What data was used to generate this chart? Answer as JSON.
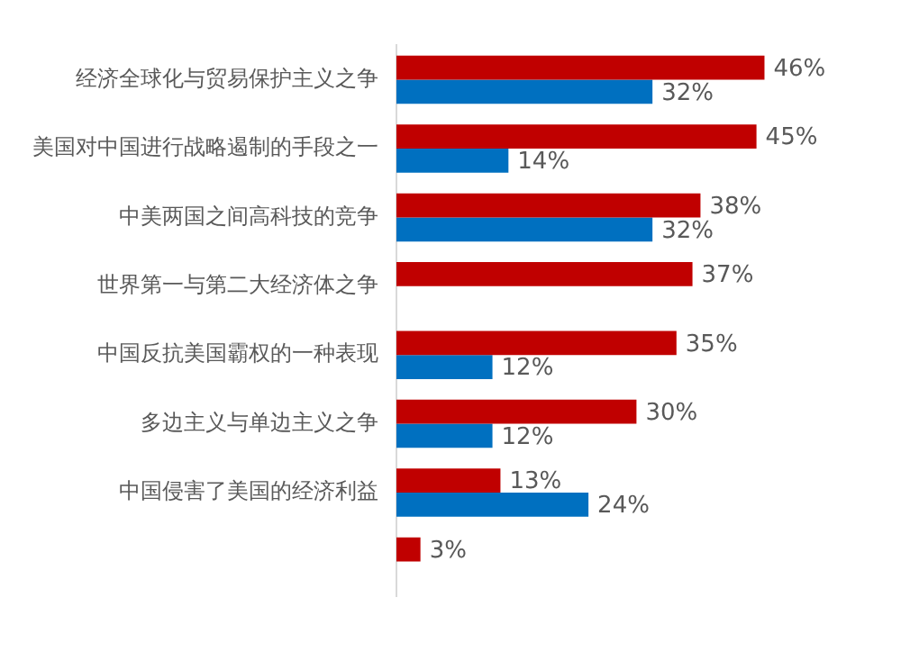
{
  "chart_data": {
    "type": "bar",
    "orientation": "horizontal",
    "categories": [
      "经济全球化与贸易保护主义之争",
      "美国对中国进行战略遏制的手段之一",
      "中美两国之间高科技的竞争",
      "世界第一与第二大经济体之争",
      "中国反抗美国霸权的一种表现",
      "多边主义与单边主义之争",
      "中国侵害了美国的经济利益",
      null
    ],
    "series": [
      {
        "color": "#c00000",
        "values": [
          46,
          45,
          38,
          37,
          35,
          30,
          13,
          3
        ],
        "value_labels": [
          "46%",
          "45%",
          "38%",
          "37%",
          "35%",
          "30%",
          "13%",
          "3%"
        ]
      },
      {
        "color": "#0070c0",
        "values": [
          32,
          14,
          32,
          null,
          12,
          12,
          24,
          null
        ],
        "value_labels": [
          "32%",
          "14%",
          "32%",
          null,
          "12%",
          "12%",
          "24%",
          null
        ]
      }
    ],
    "grid": false,
    "legend": false
  }
}
